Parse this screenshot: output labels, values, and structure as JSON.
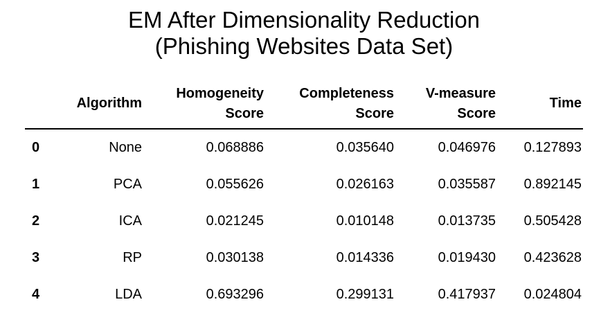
{
  "chart_data": {
    "type": "table",
    "title": [
      "EM After Dimensionality Reduction",
      "(Phishing Websites Data Set)"
    ],
    "columns": [
      {
        "key": "index",
        "label": [
          ""
        ]
      },
      {
        "key": "algorithm",
        "label": [
          "Algorithm"
        ]
      },
      {
        "key": "homogeneity",
        "label": [
          "Homogeneity",
          "Score"
        ]
      },
      {
        "key": "completeness",
        "label": [
          "Completeness",
          "Score"
        ]
      },
      {
        "key": "v_measure",
        "label": [
          "V-measure",
          "Score"
        ]
      },
      {
        "key": "time",
        "label": [
          "Time"
        ]
      }
    ],
    "rows": [
      {
        "index": "0",
        "algorithm": "None",
        "homogeneity": "0.068886",
        "completeness": "0.035640",
        "v_measure": "0.046976",
        "time": "0.127893"
      },
      {
        "index": "1",
        "algorithm": "PCA",
        "homogeneity": "0.055626",
        "completeness": "0.026163",
        "v_measure": "0.035587",
        "time": "0.892145"
      },
      {
        "index": "2",
        "algorithm": "ICA",
        "homogeneity": "0.021245",
        "completeness": "0.010148",
        "v_measure": "0.013735",
        "time": "0.505428"
      },
      {
        "index": "3",
        "algorithm": "RP",
        "homogeneity": "0.030138",
        "completeness": "0.014336",
        "v_measure": "0.019430",
        "time": "0.423628"
      },
      {
        "index": "4",
        "algorithm": "LDA",
        "homogeneity": "0.693296",
        "completeness": "0.299131",
        "v_measure": "0.417937",
        "time": "0.024804"
      }
    ]
  }
}
